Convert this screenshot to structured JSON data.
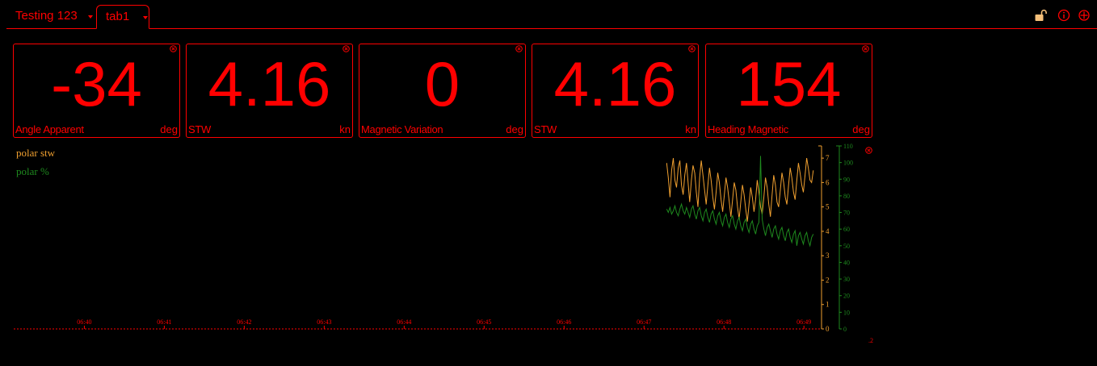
{
  "tabs": [
    {
      "label": "Testing 123"
    },
    {
      "label": "tab1"
    }
  ],
  "toolbar": {
    "icons": [
      "lock-icon",
      "info-icon",
      "add-icon"
    ]
  },
  "widgets": [
    {
      "value": "-34",
      "label": "Angle Apparent",
      "unit": "deg"
    },
    {
      "value": "4.16",
      "label": "STW",
      "unit": "kn"
    },
    {
      "value": "0",
      "label": "Magnetic Variation",
      "unit": "deg"
    },
    {
      "value": "4.16",
      "label": "STW",
      "unit": "kn"
    },
    {
      "value": "154",
      "label": "Heading Magnetic",
      "unit": "deg"
    }
  ],
  "colors": {
    "accent": "#ff0000",
    "series_stw": "#f0a030",
    "series_pct": "#1e8a1e",
    "lock": "#f5c07a",
    "background": "#000000"
  },
  "chart_data": {
    "type": "line",
    "x_ticks": [
      "06:40",
      "06:41",
      "06:42",
      "06:43",
      "06:44",
      "06:45",
      "06:46",
      "06:47",
      "06:48",
      "06:49"
    ],
    "x_range": [
      "06:39:07",
      "06:49:12"
    ],
    "corner_label": ".2",
    "y_axes": [
      {
        "name": "polar stw",
        "ticks": [
          "0",
          "1",
          "2",
          "3",
          "4",
          "5",
          "6",
          "7"
        ],
        "range": [
          0,
          7.5
        ],
        "color": "#f0a030"
      },
      {
        "name": "polar %",
        "ticks": [
          "0",
          "10",
          "20",
          "30",
          "40",
          "50",
          "60",
          "70",
          "80",
          "90",
          "100",
          "110"
        ],
        "range": [
          0,
          110
        ],
        "color": "#1e8a1e"
      }
    ],
    "series": [
      {
        "name": "polar stw",
        "axis": 0,
        "start": "06:47:17",
        "end": "06:49:07",
        "values": [
          6.8,
          6.2,
          5.4,
          6.5,
          7.0,
          6.1,
          5.8,
          6.6,
          6.9,
          5.9,
          5.5,
          6.3,
          6.8,
          6.0,
          5.2,
          6.1,
          6.7,
          6.4,
          5.6,
          5.0,
          6.2,
          6.9,
          6.3,
          5.7,
          5.1,
          5.9,
          6.6,
          6.1,
          5.4,
          4.9,
          5.6,
          6.4,
          6.0,
          5.3,
          4.8,
          5.5,
          6.2,
          5.8,
          5.2,
          4.6,
          5.3,
          6.0,
          5.7,
          5.0,
          4.5,
          5.2,
          5.9,
          5.5,
          4.9,
          4.4,
          5.1,
          5.8,
          5.4,
          4.8,
          5.3,
          6.1,
          5.6,
          5.0,
          4.7,
          5.4,
          6.2,
          5.8,
          5.1,
          4.6,
          5.5,
          6.3,
          5.9,
          5.2,
          5.0,
          5.7,
          6.4,
          6.0,
          5.4,
          5.1,
          5.9,
          6.6,
          6.2,
          5.6,
          5.3,
          6.1,
          6.8,
          6.4,
          5.9,
          5.6,
          6.3,
          7.0,
          6.6,
          6.1,
          6.0,
          6.5
        ]
      },
      {
        "name": "polar %",
        "axis": 1,
        "start": "06:47:17",
        "end": "06:49:07",
        "values": [
          72,
          70,
          73,
          69,
          71,
          74,
          70,
          68,
          72,
          75,
          71,
          69,
          73,
          70,
          67,
          72,
          74,
          69,
          66,
          71,
          73,
          68,
          65,
          70,
          72,
          67,
          64,
          69,
          71,
          66,
          63,
          68,
          70,
          65,
          62,
          67,
          69,
          64,
          61,
          66,
          68,
          63,
          60,
          65,
          67,
          62,
          59,
          64,
          66,
          61,
          58,
          63,
          65,
          60,
          57,
          62,
          64,
          104,
          66,
          60,
          56,
          61,
          63,
          59,
          55,
          60,
          62,
          57,
          54,
          59,
          61,
          56,
          53,
          58,
          60,
          55,
          52,
          57,
          59,
          50,
          56,
          58,
          54,
          51,
          56,
          58,
          53,
          50,
          55,
          57
        ]
      }
    ]
  }
}
